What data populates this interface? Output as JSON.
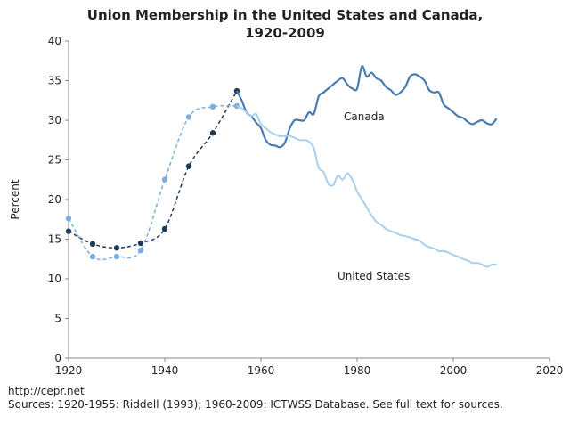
{
  "chart_data": {
    "type": "line",
    "title": [
      "Union Membership in the United States and Canada,",
      "1920-2009"
    ],
    "xlabel": "",
    "ylabel": "Percent",
    "xlim": [
      1920,
      2020
    ],
    "ylim": [
      0,
      40
    ],
    "x_ticks": [
      1920,
      1940,
      1960,
      1980,
      2000,
      2020
    ],
    "y_ticks": [
      0,
      5,
      10,
      15,
      20,
      25,
      30,
      35,
      40
    ],
    "grid": false,
    "series": [
      {
        "name": "Canada",
        "color": "#1f3b5c",
        "points_style": "dashed-with-markers",
        "x": [
          1920,
          1925,
          1930,
          1935,
          1940,
          1945,
          1950,
          1955
        ],
        "values": [
          16.0,
          14.4,
          13.9,
          14.5,
          16.3,
          24.2,
          28.4,
          33.7
        ]
      },
      {
        "name": "United States",
        "color": "#7aaee0",
        "points_style": "dashed-with-markers",
        "x": [
          1920,
          1925,
          1930,
          1935,
          1940,
          1945,
          1950,
          1955
        ],
        "values": [
          17.6,
          12.8,
          12.8,
          13.6,
          22.5,
          30.4,
          31.7,
          31.8
        ]
      },
      {
        "name": "Canada",
        "label": "Canada",
        "color": "#4a7bb0",
        "points_style": "solid",
        "x": [
          1955,
          1956,
          1957,
          1958,
          1959,
          1960,
          1961,
          1962,
          1963,
          1964,
          1965,
          1966,
          1967,
          1968,
          1969,
          1970,
          1971,
          1972,
          1973,
          1974,
          1975,
          1976,
          1977,
          1978,
          1979,
          1980,
          1981,
          1982,
          1983,
          1984,
          1985,
          1986,
          1987,
          1988,
          1989,
          1990,
          1991,
          1992,
          1993,
          1994,
          1995,
          1996,
          1997,
          1998,
          1999,
          2000,
          2001,
          2002,
          2003,
          2004,
          2005,
          2006,
          2007,
          2008,
          2009
        ],
        "values": [
          33.7,
          32.5,
          31.0,
          30.5,
          29.7,
          29.0,
          27.5,
          26.9,
          26.8,
          26.6,
          27.2,
          29.0,
          30.0,
          30.0,
          30.0,
          31.0,
          30.8,
          33.0,
          33.5,
          34.0,
          34.5,
          35.0,
          35.3,
          34.5,
          34.0,
          34.0,
          36.8,
          35.5,
          36.0,
          35.3,
          35.0,
          34.2,
          33.8,
          33.2,
          33.5,
          34.2,
          35.5,
          35.8,
          35.5,
          35.0,
          33.8,
          33.5,
          33.5,
          32.0,
          31.5,
          31.0,
          30.5,
          30.3,
          29.8,
          29.5,
          29.8,
          30.0,
          29.6,
          29.5,
          30.2
        ]
      },
      {
        "name": "United States",
        "label": "United States",
        "color": "#a8cfee",
        "points_style": "solid",
        "x": [
          1955,
          1956,
          1957,
          1958,
          1959,
          1960,
          1961,
          1962,
          1963,
          1964,
          1965,
          1966,
          1967,
          1968,
          1969,
          1970,
          1971,
          1972,
          1973,
          1974,
          1975,
          1976,
          1977,
          1978,
          1979,
          1980,
          1981,
          1982,
          1983,
          1984,
          1985,
          1986,
          1987,
          1988,
          1989,
          1990,
          1991,
          1992,
          1993,
          1994,
          1995,
          1996,
          1997,
          1998,
          1999,
          2000,
          2001,
          2002,
          2003,
          2004,
          2005,
          2006,
          2007,
          2008,
          2009
        ],
        "values": [
          31.8,
          31.5,
          31.0,
          30.5,
          30.8,
          29.5,
          29.0,
          28.5,
          28.2,
          28.0,
          28.0,
          28.0,
          27.8,
          27.5,
          27.5,
          27.3,
          26.5,
          24.0,
          23.5,
          22.0,
          21.8,
          23.0,
          22.5,
          23.3,
          22.5,
          21.0,
          20.0,
          19.0,
          18.0,
          17.2,
          16.8,
          16.3,
          16.0,
          15.8,
          15.5,
          15.4,
          15.2,
          15.0,
          14.8,
          14.3,
          14.0,
          13.8,
          13.5,
          13.5,
          13.3,
          13.0,
          12.8,
          12.5,
          12.3,
          12.0,
          12.0,
          11.8,
          11.5,
          11.8,
          11.8
        ]
      }
    ],
    "annotations": [
      "Canada",
      "United States"
    ]
  },
  "footer": {
    "url": "http://cepr.net",
    "sources": "Sources: 1920-1955: Riddell (1993); 1960-2009: ICTWSS Database. See full text for sources."
  }
}
